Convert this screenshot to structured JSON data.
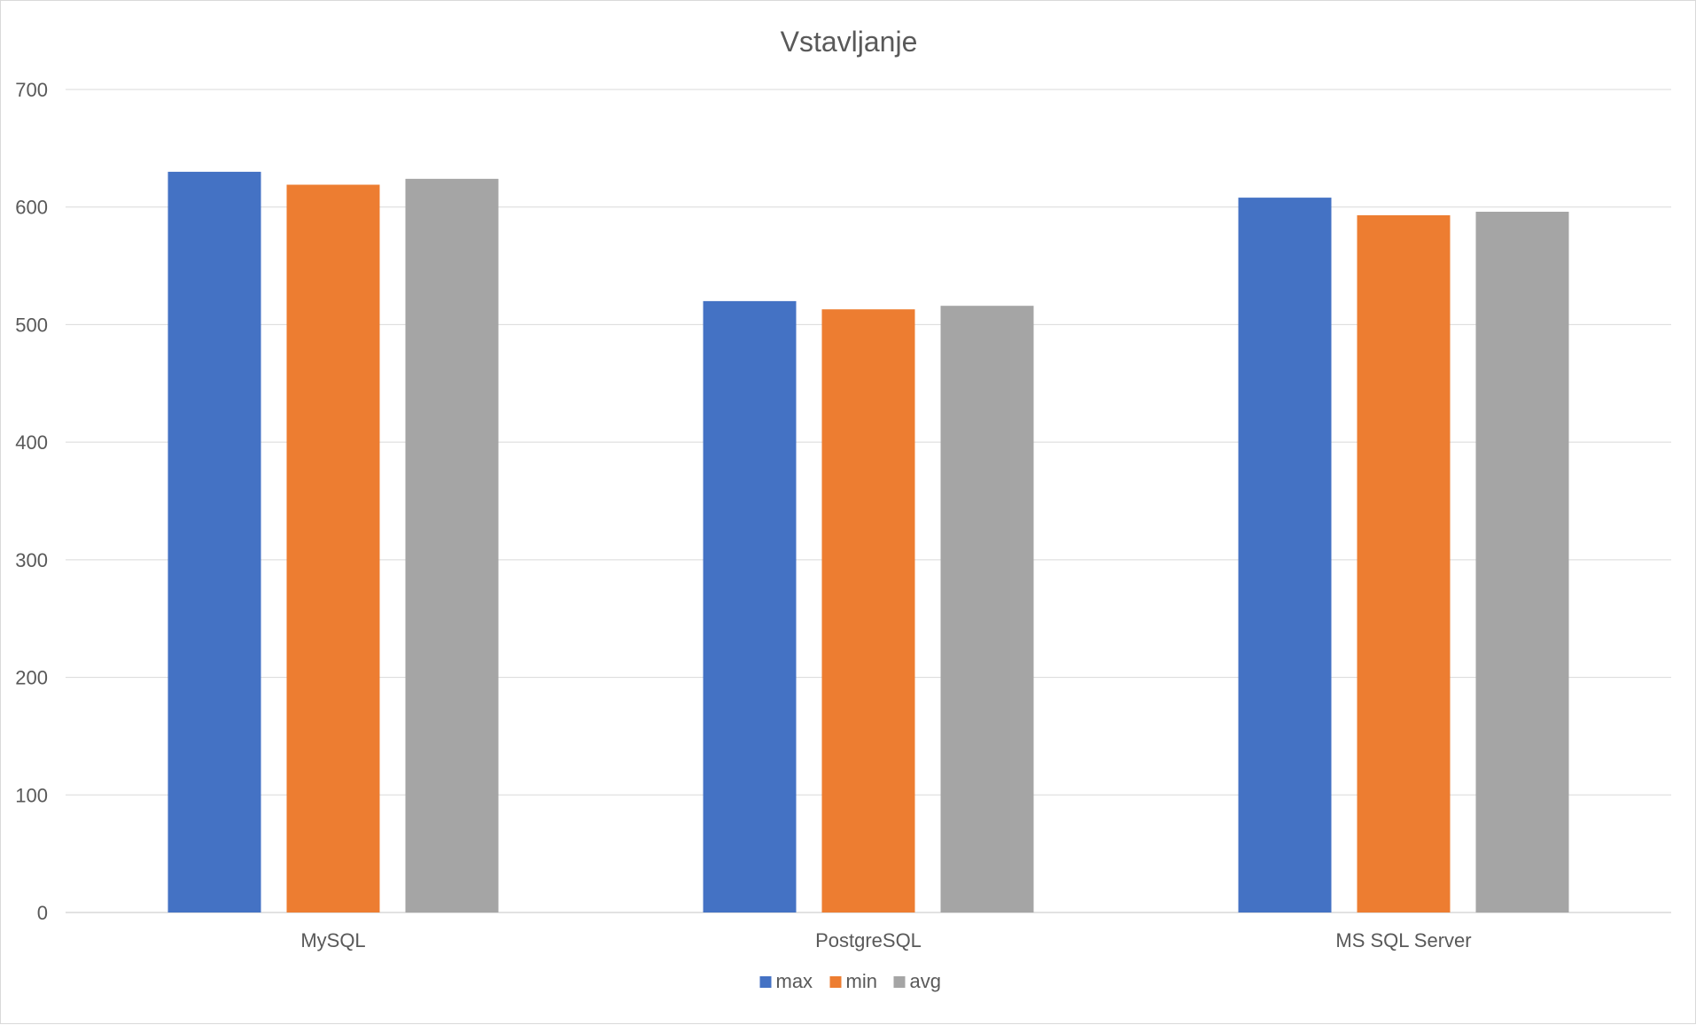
{
  "chart_data": {
    "type": "bar",
    "title": "Vstavljanje",
    "xlabel": "",
    "ylabel": "",
    "categories": [
      "MySQL",
      "PostgreSQL",
      "MS SQL Server"
    ],
    "series": [
      {
        "name": "max",
        "color": "#4472C4",
        "values": [
          630,
          520,
          608
        ]
      },
      {
        "name": "min",
        "color": "#ED7D31",
        "values": [
          619,
          513,
          593
        ]
      },
      {
        "name": "avg",
        "color": "#A5A5A5",
        "values": [
          624,
          516,
          596
        ]
      }
    ],
    "ylim": [
      0,
      700
    ],
    "yticks": [
      "0",
      "100",
      "200",
      "300",
      "400",
      "500",
      "600",
      "700"
    ],
    "grid": true,
    "legend_position": "bottom"
  }
}
